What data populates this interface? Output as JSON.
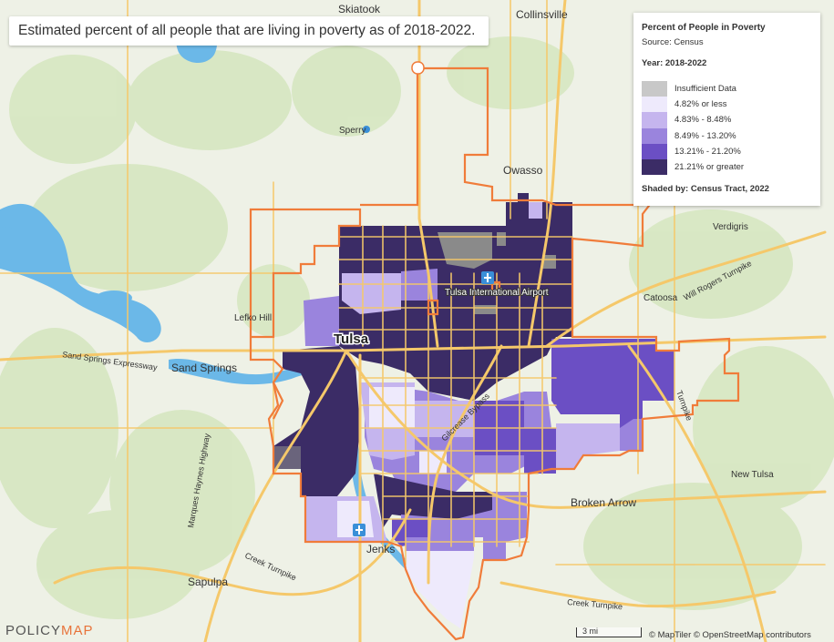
{
  "title": "Estimated percent of all people that are living in poverty as of 2018-2022.",
  "legend": {
    "title": "Percent of People in Poverty",
    "source": "Source: Census",
    "year": "Year: 2018-2022",
    "bins": [
      {
        "label": "Insufficient Data",
        "color": "#c8c8c8"
      },
      {
        "label": "4.82% or less",
        "color": "#eeeafc"
      },
      {
        "label": "4.83% - 8.48%",
        "color": "#c5b5ee"
      },
      {
        "label": "8.49% - 13.20%",
        "color": "#9a84dd"
      },
      {
        "label": "13.21% - 21.20%",
        "color": "#6b4fc4"
      },
      {
        "label": "21.21% or greater",
        "color": "#3b2c66"
      }
    ],
    "shaded_by": "Shaded by: Census Tract, 2022"
  },
  "places": {
    "skiatook": "Skiatook",
    "collinsville": "Collinsville",
    "sperry": "Sperry",
    "owasso": "Owasso",
    "verdigris": "Verdigris",
    "catoosa": "Catoosa",
    "lefko_hill": "Lefko Hill",
    "tulsa": "Tulsa",
    "airport": "Tulsa International Airport",
    "sand_springs": "Sand Springs",
    "broken_arrow": "Broken Arrow",
    "new_tulsa": "New Tulsa",
    "jenks": "Jenks",
    "sapulpa": "Sapulpa",
    "sand_springs_expwy": "Sand Springs Expressway",
    "marques_haynes": "Marques Haynes Highway",
    "creek_turnpike_w": "Creek Turnpike",
    "creek_turnpike_s": "Creek Turnpike",
    "will_rogers": "Will Rogers Turnpike",
    "bypass": "Gilcrease Bypass",
    "turnpike_e": "Turnpike"
  },
  "logo": {
    "part1": "POLICY",
    "part2": "MAP"
  },
  "scale": "3 mi",
  "attribution": "© MapTiler © OpenStreetMap contributors",
  "colors": {
    "boundary": "#f07c3a",
    "water": "#6bb8e8",
    "road": "#f5c86a",
    "land": "#eef1e6",
    "green": "#d3e6bd"
  }
}
